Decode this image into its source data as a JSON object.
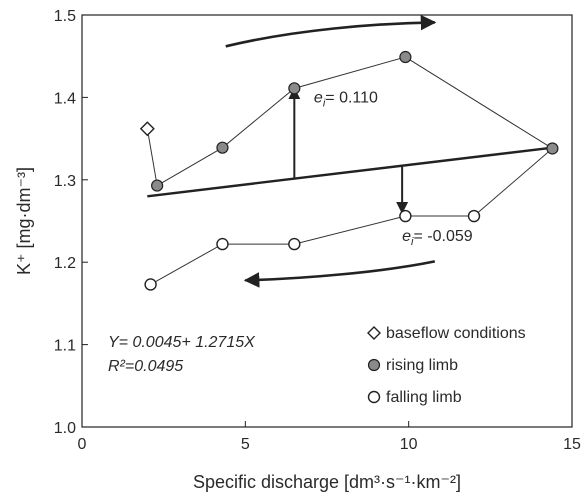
{
  "chart_data": {
    "type": "scatter",
    "xlabel": "Specific discharge [dm³·s⁻¹·km⁻²]",
    "ylabel": "K⁺ [mg·dm⁻³]",
    "xlim": [
      0,
      15
    ],
    "ylim": [
      1.0,
      1.5
    ],
    "x_ticks": [
      "0",
      "5",
      "10",
      "15"
    ],
    "y_ticks": [
      "1.0",
      "1.1",
      "1.2",
      "1.3",
      "1.4",
      "1.5"
    ],
    "grid": false,
    "legend_position": "bottom-right",
    "series": [
      {
        "name": "baseflow conditions",
        "marker": "diamond-open",
        "color": "#ffffff",
        "x": [
          2.0
        ],
        "y": [
          1.362
        ]
      },
      {
        "name": "rising limb",
        "marker": "circle-filled",
        "color": "#8a8a8a",
        "x": [
          2.3,
          4.3,
          6.5,
          9.9,
          14.4
        ],
        "y": [
          1.293,
          1.339,
          1.411,
          1.449,
          1.338
        ]
      },
      {
        "name": "falling limb",
        "marker": "circle-open",
        "color": "#ffffff",
        "x": [
          2.1,
          4.3,
          6.5,
          9.9,
          12.0
        ],
        "y": [
          1.173,
          1.222,
          1.222,
          1.256,
          1.256
        ]
      }
    ],
    "path_x": [
      2.0,
      2.3,
      4.3,
      6.5,
      9.9,
      14.4,
      12.0,
      9.9,
      6.5,
      4.3,
      2.1
    ],
    "path_y": [
      1.362,
      1.293,
      1.339,
      1.411,
      1.449,
      1.338,
      1.256,
      1.256,
      1.222,
      1.222,
      1.173
    ],
    "regression": {
      "x": [
        2.0,
        14.4
      ],
      "y": [
        1.28,
        1.339
      ],
      "equation": "Y= 0.0045+ 1.2715X",
      "r2": "R²=0.0495"
    },
    "residuals": [
      {
        "label_sym": "e",
        "label_sub": "i",
        "label_val": "= 0.110",
        "x": 6.5,
        "from_y": 1.301,
        "to_y": 1.411,
        "label_x": 7.1,
        "label_y": 1.394
      },
      {
        "label_sym": "e",
        "label_sub": "i",
        "label_val": "= -0.059",
        "x": 9.8,
        "from_y": 1.316,
        "to_y": 1.26,
        "label_x": 9.8,
        "label_y": 1.226
      }
    ],
    "hysteresis_arrows": [
      {
        "direction": "right",
        "x": [
          4.4,
          6.5,
          9.0,
          10.8
        ],
        "y": [
          1.462,
          1.482,
          1.49,
          1.491
        ]
      },
      {
        "direction": "left",
        "x": [
          10.8,
          9.2,
          6.8,
          5.0
        ],
        "y": [
          1.201,
          1.188,
          1.18,
          1.178
        ]
      }
    ]
  }
}
